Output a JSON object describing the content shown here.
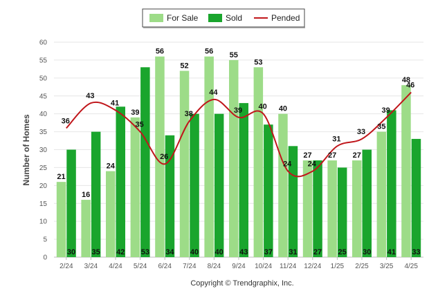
{
  "chart_data": {
    "type": "bar",
    "ylabel": "Number of Homes",
    "ylim": [
      0,
      60
    ],
    "yticks": [
      0,
      5,
      10,
      15,
      20,
      25,
      30,
      35,
      40,
      45,
      50,
      55,
      60
    ],
    "grid": true,
    "legend_position": "top-center",
    "categories": [
      "2/24",
      "3/24",
      "4/24",
      "5/24",
      "6/24",
      "7/24",
      "8/24",
      "9/24",
      "10/24",
      "11/24",
      "12/24",
      "1/25",
      "2/25",
      "3/25",
      "4/25"
    ],
    "series": [
      {
        "name": "For Sale",
        "kind": "bar",
        "color": "#9ddc88",
        "values": [
          21,
          16,
          24,
          39,
          56,
          52,
          56,
          55,
          53,
          40,
          27,
          27,
          27,
          35,
          48
        ]
      },
      {
        "name": "Sold",
        "kind": "bar",
        "color": "#1aa52d",
        "values": [
          30,
          35,
          42,
          53,
          34,
          40,
          40,
          43,
          37,
          31,
          27,
          25,
          30,
          41,
          33
        ]
      },
      {
        "name": "Pended",
        "kind": "line",
        "color": "#c0161b",
        "values": [
          36,
          43,
          41,
          35,
          26,
          38,
          44,
          39,
          40,
          24,
          24,
          31,
          33,
          39,
          46
        ]
      }
    ]
  },
  "footer": {
    "copyright": "Copyright © Trendgraphix, Inc."
  }
}
